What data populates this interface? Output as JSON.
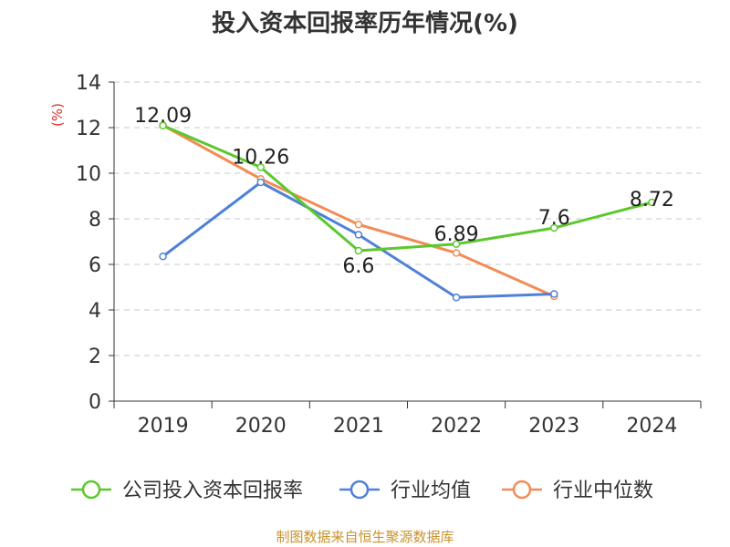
{
  "chart_data": {
    "type": "line",
    "title": "投入资本回报率历年情况(%)",
    "ylabel": "(%)",
    "xlabel": "",
    "categories": [
      "2019",
      "2020",
      "2021",
      "2022",
      "2023",
      "2024"
    ],
    "ylim": [
      0,
      14
    ],
    "y_ticks": [
      0,
      2,
      4,
      6,
      8,
      10,
      12,
      14
    ],
    "grid": true,
    "legend_position": "bottom",
    "series": [
      {
        "name": "公司投入资本回报率",
        "color": "#5cc82d",
        "values": [
          12.09,
          10.26,
          6.6,
          6.89,
          7.6,
          8.72
        ],
        "labels": [
          "12.09",
          "10.26",
          "6.6",
          "6.89",
          "7.6",
          "8.72"
        ]
      },
      {
        "name": "行业均值",
        "color": "#4f81d9",
        "values": [
          6.35,
          9.6,
          7.3,
          4.55,
          4.7,
          null
        ]
      },
      {
        "name": "行业中位数",
        "color": "#f28c56",
        "values": [
          12.1,
          9.75,
          7.75,
          6.5,
          4.6,
          null
        ]
      }
    ]
  },
  "footer": {
    "source": "制图数据来自恒生聚源数据库"
  }
}
